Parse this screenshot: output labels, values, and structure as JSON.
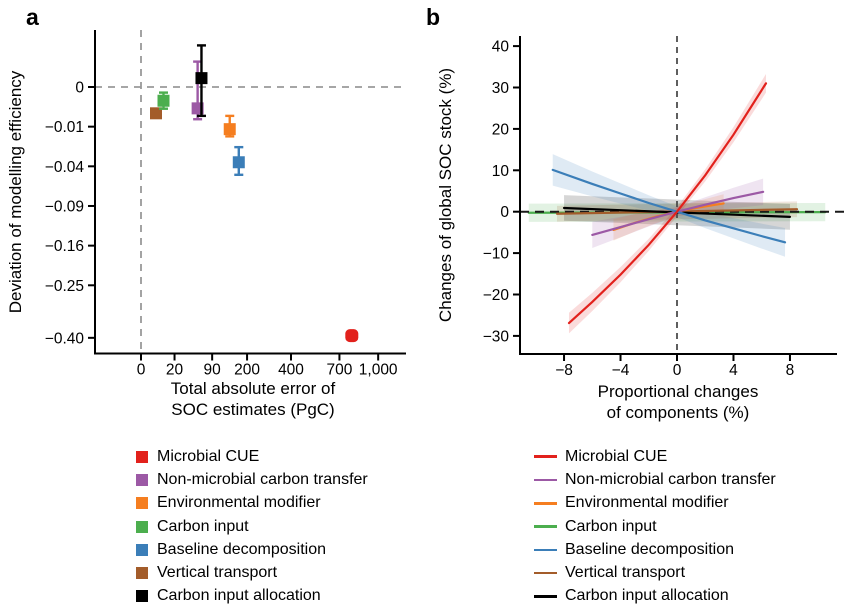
{
  "panels": {
    "a": {
      "label": "a",
      "ylabel": "Deviation of modelling efficiency",
      "xlabel_line1": "Total absolute error of",
      "xlabel_line2": "SOC estimates (PgC)"
    },
    "b": {
      "label": "b",
      "ylabel": "Changes of global SOC stock (%)",
      "xlabel_line1": "Proportional changes",
      "xlabel_line2": "of components (%)"
    }
  },
  "colors": {
    "red": "#e2211c",
    "purple": "#9c59a5",
    "orange": "#f57e20",
    "green": "#4cae4e",
    "blue": "#3b7eb8",
    "brown": "#a35c2a",
    "black": "#000000",
    "ref_grey": "#999999",
    "ref_dark": "#4d4d4d"
  },
  "legend_items": [
    {
      "name": "Microbial CUE",
      "color": "#e2211c"
    },
    {
      "name": "Non-microbial carbon transfer",
      "color": "#9c59a5"
    },
    {
      "name": "Environmental modifier",
      "color": "#f57e20"
    },
    {
      "name": "Carbon input",
      "color": "#4cae4e"
    },
    {
      "name": "Baseline decomposition",
      "color": "#3b7eb8"
    },
    {
      "name": "Vertical transport",
      "color": "#a35c2a"
    },
    {
      "name": "Carbon input allocation",
      "color": "#000000"
    }
  ],
  "chart_data": [
    {
      "type": "scatter",
      "panel": "a",
      "x_scale": "signed_sqrt",
      "y_scale": "signed_sqrt",
      "xlabel": "Total absolute error of SOC estimates (PgC)",
      "ylabel": "Deviation of modelling efficiency",
      "xlim": [
        -40,
        1280
      ],
      "ylim": [
        -0.44,
        0.02
      ],
      "x_ticks": [
        0,
        20,
        90,
        200,
        400,
        700,
        1000
      ],
      "x_tick_labels": [
        "0",
        "20",
        "90",
        "200",
        "400",
        "700",
        "1,000"
      ],
      "y_ticks": [
        0,
        -0.01,
        -0.04,
        -0.09,
        -0.16,
        -0.25,
        -0.4
      ],
      "y_tick_labels": [
        "0",
        "−0.01",
        "−0.04",
        "−0.09",
        "−0.16",
        "−0.25",
        "−0.40"
      ],
      "ref_x": 0,
      "ref_y": 0,
      "points": [
        {
          "name": "Microbial CUE",
          "color": "#e2211c",
          "x": 790,
          "y": -0.393,
          "ylo": -0.41,
          "yhi": -0.376
        },
        {
          "name": "Non-microbial carbon transfer",
          "color": "#9c59a5",
          "x": 57,
          "y": -0.0029,
          "ylo": -0.0066,
          "yhi": 0.0041
        },
        {
          "name": "Environmental modifier",
          "color": "#f57e20",
          "x": 140,
          "y": -0.0113,
          "ylo": -0.0155,
          "yhi": -0.0053
        },
        {
          "name": "Carbon input",
          "color": "#4cae4e",
          "x": 9,
          "y": -0.0012,
          "ylo": -0.003,
          "yhi": -0.0002
        },
        {
          "name": "Baseline decomposition",
          "color": "#3b7eb8",
          "x": 170,
          "y": -0.036,
          "ylo": -0.049,
          "yhi": -0.023
        },
        {
          "name": "Vertical transport",
          "color": "#a35c2a",
          "x": 4,
          "y": -0.0044,
          "ylo": -0.0056,
          "yhi": -0.003
        },
        {
          "name": "Carbon input allocation",
          "color": "#000000",
          "x": 65,
          "y": 0.0005,
          "ylo": -0.0053,
          "yhi": 0.011
        }
      ]
    },
    {
      "type": "line",
      "panel": "b",
      "x_scale": "linear",
      "y_scale": "linear",
      "xlabel": "Proportional changes of components (%)",
      "ylabel": "Changes of global SOC stock (%)",
      "xlim": [
        -11.1,
        11.3
      ],
      "ylim": [
        -34.4,
        42.5
      ],
      "x_ticks": [
        -8,
        -4,
        0,
        4,
        8
      ],
      "x_tick_labels": [
        "−8",
        "−4",
        "0",
        "4",
        "8"
      ],
      "y_ticks": [
        40,
        30,
        20,
        10,
        0,
        -10,
        -20,
        -30
      ],
      "y_tick_labels": [
        "40",
        "30",
        "20",
        "10",
        "0",
        "−10",
        "−20",
        "−30"
      ],
      "ref_x": 0,
      "ref_y": 0,
      "series": [
        {
          "name": "Microbial CUE",
          "color": "#e2211c",
          "band_halfwidth": [
            1.1,
            2.5
          ],
          "x": [
            -7.65,
            -6,
            -4,
            -2,
            0,
            2,
            4,
            6.3
          ],
          "y": [
            -26.9,
            -21.8,
            -15.2,
            -8.0,
            0,
            8.8,
            18.6,
            31.0
          ]
        },
        {
          "name": "Non-microbial carbon transfer",
          "color": "#9c59a5",
          "band_halfwidth": [
            1.1,
            3.2
          ],
          "x": [
            -6,
            -4,
            -2,
            0,
            2,
            4,
            6.1
          ],
          "y": [
            -5.6,
            -3.7,
            -1.8,
            0,
            1.7,
            3.3,
            4.8
          ]
        },
        {
          "name": "Environmental modifier",
          "color": "#f57e20",
          "band_halfwidth": [
            1.1,
            2.6
          ],
          "x": [
            -4.5,
            -3,
            -1.5,
            0,
            1.5,
            3.3
          ],
          "y": [
            -4.4,
            -2.7,
            -1.2,
            0,
            1.0,
            2.0
          ]
        },
        {
          "name": "Carbon input",
          "color": "#4cae4e",
          "band_halfwidth": [
            2.0,
            2.2
          ],
          "x": [
            -10.5,
            10.5
          ],
          "y": [
            -0.25,
            -0.1
          ]
        },
        {
          "name": "Baseline decomposition",
          "color": "#3b7eb8",
          "band_halfwidth": [
            1.3,
            3.8
          ],
          "x": [
            -8.8,
            -6,
            -4,
            -2,
            0,
            2,
            4,
            6,
            7.65
          ],
          "y": [
            10.1,
            6.7,
            4.4,
            2.1,
            0,
            -2.1,
            -4.0,
            -5.9,
            -7.4
          ]
        },
        {
          "name": "Vertical transport",
          "color": "#a35c2a",
          "band_halfwidth": [
            1.7,
            1.9
          ],
          "x": [
            -8.5,
            8.5
          ],
          "y": [
            -0.5,
            0.6
          ]
        },
        {
          "name": "Carbon input allocation",
          "color": "#000000",
          "band_halfwidth": [
            2.6,
            3.1
          ],
          "x": [
            -8,
            8
          ],
          "y": [
            0.9,
            -1.25
          ]
        }
      ]
    }
  ]
}
